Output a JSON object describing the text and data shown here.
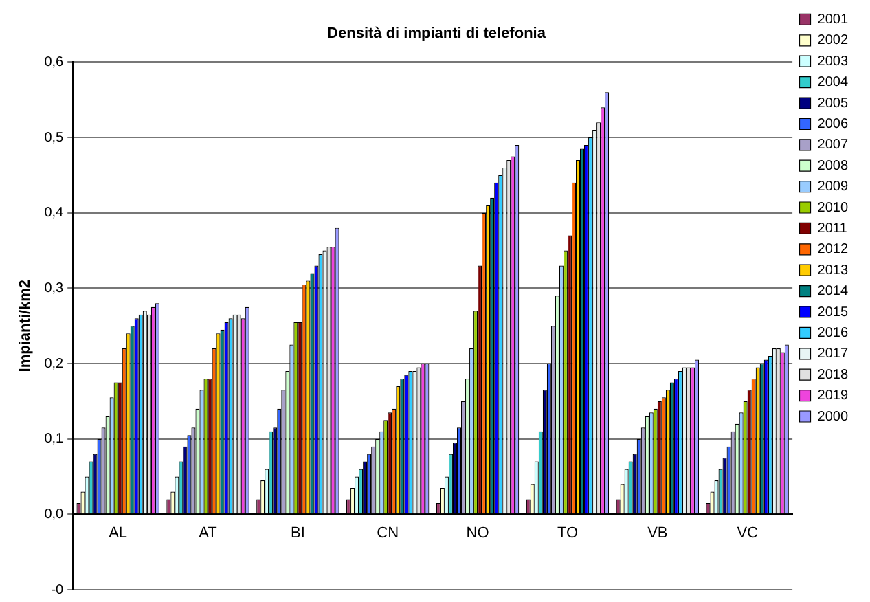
{
  "chart_data": {
    "type": "bar",
    "title": "Densità di impianti di telefonia",
    "ylabel": "Impianti/km2",
    "categories": [
      "AL",
      "AT",
      "BI",
      "CN",
      "NO",
      "TO",
      "VB",
      "VC"
    ],
    "ylim": [
      -0.1,
      0.6
    ],
    "yticks": [
      {
        "value": -0.1,
        "label": "-0"
      },
      {
        "value": 0,
        "label": "0,0"
      },
      {
        "value": 0.1,
        "label": "0,1"
      },
      {
        "value": 0.2,
        "label": "0,2"
      },
      {
        "value": 0.3,
        "label": "0,3"
      },
      {
        "value": 0.4,
        "label": "0,4"
      },
      {
        "value": 0.5,
        "label": "0,5"
      },
      {
        "value": 0.6,
        "label": "0,6"
      }
    ],
    "grid": "y",
    "legend": "right",
    "series": [
      {
        "name": "2000",
        "color": "#9999ff",
        "values": [
          0.28,
          0.275,
          0.38,
          0.2,
          0.49,
          0.56,
          0.205,
          0.225
        ]
      },
      {
        "name": "2001",
        "color": "#993366",
        "values": [
          0.015,
          0.02,
          0.02,
          0.02,
          0.015,
          0.02,
          0.02,
          0.015
        ]
      },
      {
        "name": "2002",
        "color": "#ffffcc",
        "values": [
          0.03,
          0.03,
          0.045,
          0.035,
          0.035,
          0.04,
          0.04,
          0.03
        ]
      },
      {
        "name": "2003",
        "color": "#ccffff",
        "values": [
          0.05,
          0.05,
          0.06,
          0.05,
          0.05,
          0.07,
          0.06,
          0.045
        ]
      },
      {
        "name": "2004",
        "color": "#33cccc",
        "values": [
          0.07,
          0.07,
          0.11,
          0.06,
          0.08,
          0.11,
          0.07,
          0.06
        ]
      },
      {
        "name": "2005",
        "color": "#000080",
        "values": [
          0.08,
          0.09,
          0.115,
          0.07,
          0.095,
          0.165,
          0.08,
          0.075
        ]
      },
      {
        "name": "2006",
        "color": "#3366ff",
        "values": [
          0.1,
          0.105,
          0.14,
          0.08,
          0.115,
          0.2,
          0.1,
          0.09
        ]
      },
      {
        "name": "2007",
        "color": "#a8a0c8",
        "values": [
          0.115,
          0.115,
          0.165,
          0.09,
          0.15,
          0.25,
          0.115,
          0.11
        ]
      },
      {
        "name": "2008",
        "color": "#ccffcc",
        "values": [
          0.13,
          0.14,
          0.19,
          0.1,
          0.18,
          0.29,
          0.13,
          0.12
        ]
      },
      {
        "name": "2009",
        "color": "#99ccff",
        "values": [
          0.155,
          0.165,
          0.225,
          0.11,
          0.22,
          0.33,
          0.135,
          0.135
        ]
      },
      {
        "name": "2010",
        "color": "#99cc00",
        "values": [
          0.175,
          0.18,
          0.255,
          0.125,
          0.27,
          0.35,
          0.14,
          0.15
        ]
      },
      {
        "name": "2011",
        "color": "#800000",
        "values": [
          0.175,
          0.18,
          0.255,
          0.135,
          0.33,
          0.37,
          0.15,
          0.165
        ]
      },
      {
        "name": "2012",
        "color": "#ff6600",
        "values": [
          0.22,
          0.22,
          0.305,
          0.14,
          0.4,
          0.44,
          0.155,
          0.18
        ]
      },
      {
        "name": "2013",
        "color": "#ffcc00",
        "values": [
          0.24,
          0.24,
          0.31,
          0.17,
          0.41,
          0.47,
          0.165,
          0.195
        ]
      },
      {
        "name": "2014",
        "color": "#008080",
        "values": [
          0.25,
          0.245,
          0.32,
          0.18,
          0.42,
          0.485,
          0.175,
          0.2
        ]
      },
      {
        "name": "2015",
        "color": "#0000ff",
        "values": [
          0.26,
          0.255,
          0.33,
          0.185,
          0.44,
          0.49,
          0.18,
          0.205
        ]
      },
      {
        "name": "2016",
        "color": "#33ccff",
        "values": [
          0.265,
          0.26,
          0.345,
          0.19,
          0.45,
          0.5,
          0.19,
          0.21
        ]
      },
      {
        "name": "2017",
        "color": "#e8f4f4",
        "values": [
          0.27,
          0.265,
          0.35,
          0.19,
          0.46,
          0.51,
          0.195,
          0.22
        ]
      },
      {
        "name": "2018",
        "color": "#e0e0e0",
        "values": [
          0.265,
          0.265,
          0.355,
          0.195,
          0.47,
          0.52,
          0.195,
          0.22
        ]
      },
      {
        "name": "2019",
        "color": "#ee44dd",
        "values": [
          0.275,
          0.26,
          0.355,
          0.2,
          0.475,
          0.54,
          0.195,
          0.215
        ]
      }
    ]
  }
}
